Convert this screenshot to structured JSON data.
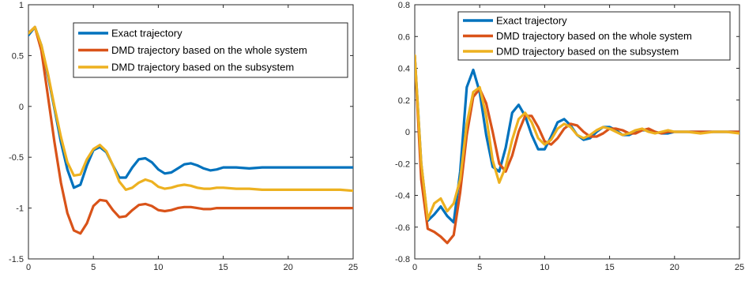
{
  "chart_data": [
    {
      "type": "line",
      "xlim": [
        0,
        25
      ],
      "ylim": [
        -1.5,
        1
      ],
      "xticks": [
        0,
        5,
        10,
        15,
        20,
        25
      ],
      "yticks": [
        -1.5,
        -1,
        -0.5,
        0,
        0.5,
        1
      ],
      "xtick_labels": [
        "0",
        "5",
        "10",
        "15",
        "20",
        "25"
      ],
      "ytick_labels": [
        "-1.5",
        "-1",
        "-0.5",
        "0",
        "0.5",
        "1"
      ],
      "grid": false,
      "legend_position": "top-right",
      "series": [
        {
          "name": "Exact trajectory",
          "color": "#0072BD",
          "x": [
            0,
            0.5,
            1,
            1.5,
            2,
            2.5,
            3,
            3.5,
            4,
            4.5,
            5,
            5.5,
            6,
            6.5,
            7,
            7.5,
            8,
            8.5,
            9,
            9.5,
            10,
            10.5,
            11,
            11.5,
            12,
            12.5,
            13,
            13.5,
            14,
            14.5,
            15,
            16,
            17,
            18,
            19,
            20,
            21,
            22,
            23,
            24,
            25
          ],
          "y": [
            0.7,
            0.78,
            0.6,
            0.3,
            -0.02,
            -0.35,
            -0.62,
            -0.8,
            -0.77,
            -0.58,
            -0.43,
            -0.4,
            -0.45,
            -0.58,
            -0.7,
            -0.7,
            -0.6,
            -0.52,
            -0.51,
            -0.55,
            -0.62,
            -0.66,
            -0.65,
            -0.61,
            -0.57,
            -0.56,
            -0.58,
            -0.61,
            -0.63,
            -0.62,
            -0.6,
            -0.6,
            -0.61,
            -0.6,
            -0.6,
            -0.6,
            -0.6,
            -0.6,
            -0.6,
            -0.6,
            -0.6
          ]
        },
        {
          "name": "DMD trajectory based on the whole system",
          "color": "#D95319",
          "x": [
            0,
            0.5,
            1,
            1.5,
            2,
            2.5,
            3,
            3.5,
            4,
            4.5,
            5,
            5.5,
            6,
            6.5,
            7,
            7.5,
            8,
            8.5,
            9,
            9.5,
            10,
            10.5,
            11,
            11.5,
            12,
            12.5,
            13,
            13.5,
            14,
            14.5,
            15,
            16,
            17,
            18,
            19,
            20,
            21,
            22,
            23,
            24,
            25
          ],
          "y": [
            0.72,
            0.78,
            0.55,
            0.1,
            -0.35,
            -0.75,
            -1.05,
            -1.22,
            -1.25,
            -1.15,
            -0.98,
            -0.92,
            -0.93,
            -1.02,
            -1.09,
            -1.08,
            -1.02,
            -0.97,
            -0.96,
            -0.98,
            -1.02,
            -1.03,
            -1.02,
            -1.0,
            -0.99,
            -0.99,
            -1.0,
            -1.01,
            -1.01,
            -1.0,
            -1.0,
            -1.0,
            -1.0,
            -1.0,
            -1.0,
            -1.0,
            -1.0,
            -1.0,
            -1.0,
            -1.0,
            -1.0
          ]
        },
        {
          "name": "DMD trajectory based on the subsystem",
          "color": "#EDB120",
          "x": [
            0,
            0.5,
            1,
            1.5,
            2,
            2.5,
            3,
            3.5,
            4,
            4.5,
            5,
            5.5,
            6,
            6.5,
            7,
            7.5,
            8,
            8.5,
            9,
            9.5,
            10,
            10.5,
            11,
            11.5,
            12,
            12.5,
            13,
            13.5,
            14,
            14.5,
            15,
            16,
            17,
            18,
            19,
            20,
            21,
            22,
            23,
            24,
            25
          ],
          "y": [
            0.72,
            0.78,
            0.6,
            0.32,
            0.0,
            -0.3,
            -0.55,
            -0.68,
            -0.67,
            -0.52,
            -0.42,
            -0.38,
            -0.44,
            -0.58,
            -0.74,
            -0.82,
            -0.8,
            -0.75,
            -0.72,
            -0.74,
            -0.79,
            -0.81,
            -0.8,
            -0.78,
            -0.77,
            -0.78,
            -0.8,
            -0.81,
            -0.81,
            -0.8,
            -0.8,
            -0.81,
            -0.81,
            -0.82,
            -0.82,
            -0.82,
            -0.82,
            -0.82,
            -0.82,
            -0.82,
            -0.83
          ]
        }
      ]
    },
    {
      "type": "line",
      "xlim": [
        0,
        25
      ],
      "ylim": [
        -0.8,
        0.8
      ],
      "xticks": [
        0,
        5,
        10,
        15,
        20,
        25
      ],
      "yticks": [
        -0.8,
        -0.6,
        -0.4,
        -0.2,
        0,
        0.2,
        0.4,
        0.6,
        0.8
      ],
      "xtick_labels": [
        "0",
        "5",
        "10",
        "15",
        "20",
        "25"
      ],
      "ytick_labels": [
        "-0.8",
        "-0.6",
        "-0.4",
        "-0.2",
        "0",
        "0.2",
        "0.4",
        "0.6",
        "0.8"
      ],
      "grid": false,
      "legend_position": "top-right",
      "series": [
        {
          "name": "Exact trajectory",
          "color": "#0072BD",
          "x": [
            0,
            0.5,
            1,
            1.5,
            2,
            2.5,
            3,
            3.5,
            4,
            4.5,
            5,
            5.5,
            6,
            6.5,
            7,
            7.5,
            8,
            8.5,
            9,
            9.5,
            10,
            10.5,
            11,
            11.5,
            12,
            12.5,
            13,
            13.5,
            14,
            14.5,
            15,
            15.5,
            16,
            16.5,
            17,
            17.5,
            18,
            18.5,
            19,
            19.5,
            20,
            21,
            22,
            23,
            24,
            25
          ],
          "y": [
            0.48,
            -0.2,
            -0.56,
            -0.52,
            -0.47,
            -0.53,
            -0.57,
            -0.25,
            0.28,
            0.39,
            0.25,
            -0.02,
            -0.22,
            -0.25,
            -0.1,
            0.12,
            0.17,
            0.1,
            -0.02,
            -0.11,
            -0.11,
            -0.03,
            0.06,
            0.08,
            0.04,
            -0.02,
            -0.05,
            -0.04,
            0.0,
            0.03,
            0.03,
            0.01,
            -0.02,
            -0.02,
            0.0,
            0.01,
            0.01,
            0.0,
            -0.01,
            -0.01,
            0.0,
            0.0,
            0.0,
            0.0,
            0.0,
            0.0
          ]
        },
        {
          "name": "DMD trajectory based on the whole system",
          "color": "#D95319",
          "x": [
            0,
            0.5,
            1,
            1.5,
            2,
            2.5,
            3,
            3.5,
            4,
            4.5,
            5,
            5.5,
            6,
            6.5,
            7,
            7.5,
            8,
            8.5,
            9,
            9.5,
            10,
            10.5,
            11,
            11.5,
            12,
            12.5,
            13,
            13.5,
            14,
            14.5,
            15,
            15.5,
            16,
            16.5,
            17,
            17.5,
            18,
            18.5,
            19,
            19.5,
            20,
            21,
            22,
            23,
            24,
            25
          ],
          "y": [
            0.48,
            -0.3,
            -0.61,
            -0.63,
            -0.66,
            -0.7,
            -0.65,
            -0.38,
            -0.02,
            0.22,
            0.27,
            0.18,
            0.0,
            -0.2,
            -0.25,
            -0.15,
            0.0,
            0.1,
            0.1,
            0.03,
            -0.06,
            -0.08,
            -0.04,
            0.02,
            0.05,
            0.04,
            0.0,
            -0.03,
            -0.03,
            -0.01,
            0.02,
            0.02,
            0.01,
            -0.01,
            -0.01,
            0.01,
            0.02,
            0.0,
            -0.01,
            0.0,
            0.0,
            0.0,
            0.0,
            0.0,
            0.0,
            0.0
          ]
        },
        {
          "name": "DMD trajectory based on the subsystem",
          "color": "#EDB120",
          "x": [
            0,
            0.5,
            1,
            1.5,
            2,
            2.5,
            3,
            3.5,
            4,
            4.5,
            5,
            5.5,
            6,
            6.5,
            7,
            7.5,
            8,
            8.5,
            9,
            9.5,
            10,
            10.5,
            11,
            11.5,
            12,
            12.5,
            13,
            13.5,
            14,
            14.5,
            15,
            15.5,
            16,
            16.5,
            17,
            17.5,
            18,
            18.5,
            19,
            19.5,
            20,
            21,
            22,
            23,
            24,
            25
          ],
          "y": [
            0.48,
            -0.2,
            -0.55,
            -0.45,
            -0.42,
            -0.5,
            -0.45,
            -0.3,
            0.05,
            0.25,
            0.28,
            0.1,
            -0.18,
            -0.32,
            -0.22,
            -0.05,
            0.08,
            0.12,
            0.06,
            -0.04,
            -0.08,
            -0.05,
            0.02,
            0.05,
            0.03,
            -0.02,
            -0.04,
            -0.02,
            0.01,
            0.03,
            0.02,
            0.0,
            -0.02,
            -0.01,
            0.01,
            0.02,
            0.0,
            -0.01,
            0.0,
            0.01,
            0.0,
            0.0,
            -0.01,
            0.0,
            0.0,
            -0.01
          ]
        }
      ]
    }
  ]
}
